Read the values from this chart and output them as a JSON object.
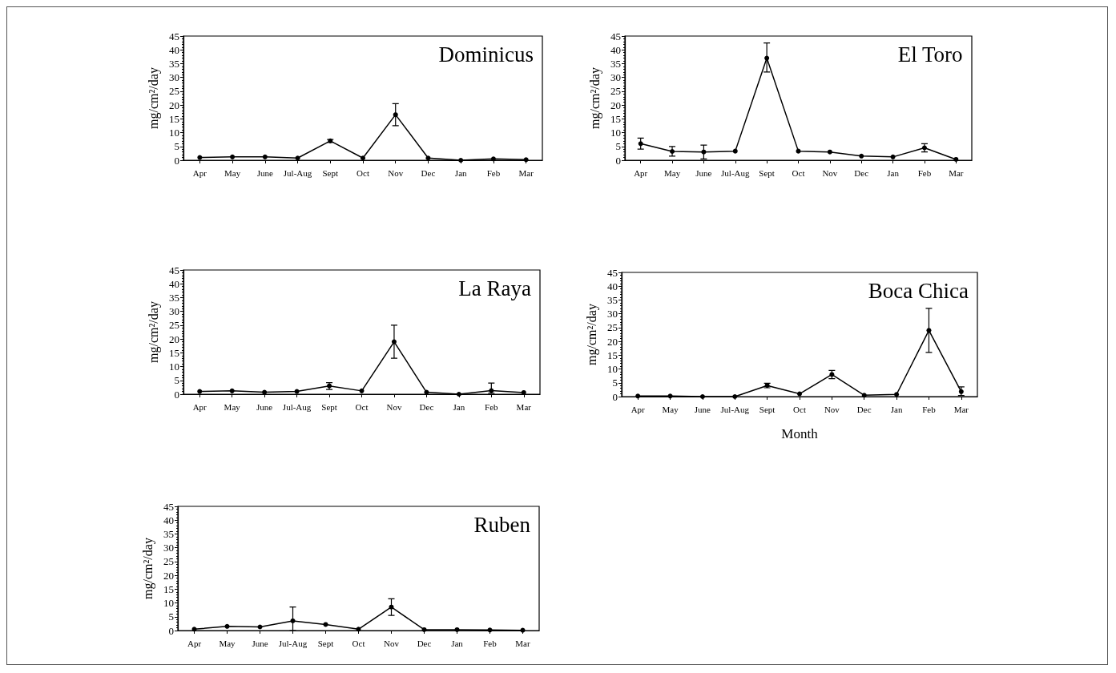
{
  "chart_data": [
    {
      "type": "line",
      "title": "Dominicus",
      "ylabel": "mg/cm²/day",
      "categories": [
        "Apr",
        "May",
        "June",
        "Jul-Aug",
        "Sept",
        "Oct",
        "Nov",
        "Dec",
        "Jan",
        "Feb",
        "Mar"
      ],
      "series": [
        {
          "color": "#000000",
          "values": [
            1,
            1.2,
            1.2,
            0.8,
            7,
            0.8,
            16.5,
            0.8,
            0,
            0.5,
            0.2
          ],
          "errors": [
            null,
            null,
            null,
            null,
            0.5,
            null,
            [
              12.5,
              20.5
            ],
            null,
            null,
            null,
            null
          ]
        }
      ],
      "ylim": [
        0,
        45
      ],
      "yticks": [
        0,
        5,
        10,
        15,
        20,
        25,
        30,
        35,
        40,
        45
      ],
      "grid": false,
      "marker": "circle",
      "line_style": "solid"
    },
    {
      "type": "line",
      "title": "El Toro",
      "ylabel": "mg/cm²/day",
      "categories": [
        "Apr",
        "May",
        "June",
        "Jul-Aug",
        "Sept",
        "Oct",
        "Nov",
        "Dec",
        "Jan",
        "Feb",
        "Mar"
      ],
      "series": [
        {
          "color": "#000000",
          "values": [
            6,
            3.2,
            3,
            3.3,
            37,
            3.3,
            3,
            1.5,
            1.2,
            4.5,
            0.3
          ],
          "errors": [
            [
              4,
              8
            ],
            [
              1.5,
              5
            ],
            [
              0.5,
              5.5
            ],
            null,
            [
              32,
              42.5
            ],
            null,
            null,
            null,
            null,
            [
              3,
              6
            ],
            null
          ]
        }
      ],
      "ylim": [
        0,
        45
      ],
      "yticks": [
        0,
        5,
        10,
        15,
        20,
        25,
        30,
        35,
        40,
        45
      ],
      "grid": false,
      "marker": "circle",
      "line_style": "solid"
    },
    {
      "type": "line",
      "title": "La Raya",
      "ylabel": "mg/cm²/day",
      "categories": [
        "Apr",
        "May",
        "June",
        "Jul-Aug",
        "Sept",
        "Oct",
        "Nov",
        "Dec",
        "Jan",
        "Feb",
        "Mar"
      ],
      "series": [
        {
          "color": "#000000",
          "values": [
            1,
            1.2,
            0.7,
            1,
            3,
            1.2,
            19,
            0.7,
            0,
            1.3,
            0.6
          ],
          "errors": [
            null,
            null,
            null,
            null,
            [
              1.7,
              4.2
            ],
            null,
            [
              13,
              25
            ],
            null,
            null,
            [
              0.3,
              4
            ],
            null
          ]
        }
      ],
      "ylim": [
        0,
        45
      ],
      "yticks": [
        0,
        5,
        10,
        15,
        20,
        25,
        30,
        35,
        40,
        45
      ],
      "grid": false,
      "marker": "circle",
      "line_style": "solid"
    },
    {
      "type": "line",
      "title": "Boca Chica",
      "xlabel": "Month",
      "ylabel": "mg/cm²/day",
      "categories": [
        "Apr",
        "May",
        "June",
        "Jul-Aug",
        "Sept",
        "Oct",
        "Nov",
        "Dec",
        "Jan",
        "Feb",
        "Mar"
      ],
      "series": [
        {
          "color": "#000000",
          "values": [
            0.2,
            0.2,
            0,
            0,
            4,
            1,
            8,
            0.5,
            0.8,
            24,
            1.8
          ],
          "errors": [
            null,
            null,
            null,
            null,
            [
              3.2,
              4.8
            ],
            null,
            [
              6.5,
              9.5
            ],
            null,
            null,
            [
              16,
              32
            ],
            [
              0.4,
              3.5
            ]
          ]
        }
      ],
      "ylim": [
        0,
        45
      ],
      "yticks": [
        0,
        5,
        10,
        15,
        20,
        25,
        30,
        35,
        40,
        45
      ],
      "grid": false,
      "marker": "circle",
      "line_style": "solid"
    },
    {
      "type": "line",
      "title": "Ruben",
      "ylabel": "mg/cm²/day",
      "categories": [
        "Apr",
        "May",
        "June",
        "Jul-Aug",
        "Sept",
        "Oct",
        "Nov",
        "Dec",
        "Jan",
        "Feb",
        "Mar"
      ],
      "series": [
        {
          "color": "#000000",
          "values": [
            0.5,
            1.5,
            1.3,
            3.5,
            2.2,
            0.5,
            8.5,
            0.3,
            0.3,
            0.2,
            0.1
          ],
          "errors": [
            null,
            null,
            null,
            [
              0,
              8.5
            ],
            null,
            null,
            [
              5.5,
              11.5
            ],
            null,
            null,
            null,
            null
          ]
        }
      ],
      "ylim": [
        0,
        45
      ],
      "yticks": [
        0,
        5,
        10,
        15,
        20,
        25,
        30,
        35,
        40,
        45
      ],
      "grid": false,
      "marker": "circle",
      "line_style": "solid"
    }
  ]
}
